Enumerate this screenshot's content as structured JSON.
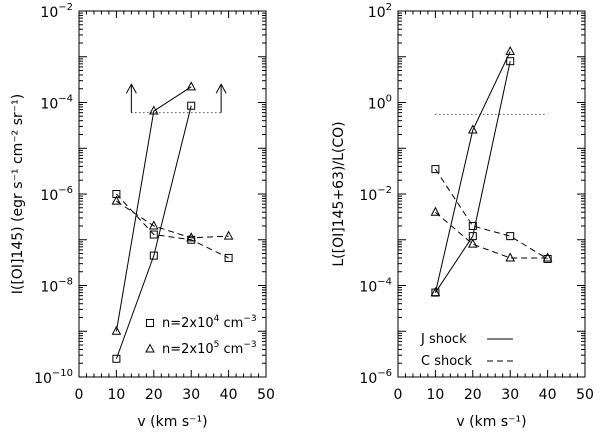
{
  "chart_data": [
    {
      "type": "scatter",
      "panel": "left",
      "title": "",
      "xlabel": "v (km s⁻¹)",
      "ylabel": "I([OI]145) (egr s⁻¹ cm⁻² sr⁻¹)",
      "y_scale": "log",
      "xlim": [
        0,
        50
      ],
      "ylim_exp": [
        -10,
        -2
      ],
      "x_ticks": [
        0,
        10,
        20,
        30,
        40,
        50
      ],
      "y_ticks_exp": [
        -10,
        -8,
        -6,
        -4,
        -2
      ],
      "series": [
        {
          "marker": "square",
          "linestyle": "solid",
          "x": [
            10,
            20,
            30
          ],
          "y": [
            2.5e-10,
            4.5e-08,
            8.5e-05
          ]
        },
        {
          "marker": "square",
          "linestyle": "dashed",
          "x": [
            10,
            20,
            30,
            40
          ],
          "y": [
            1e-06,
            1.3e-07,
            1e-07,
            4e-08
          ]
        },
        {
          "marker": "triangle",
          "linestyle": "solid",
          "x": [
            10,
            20,
            30
          ],
          "y": [
            1e-09,
            6.5e-05,
            0.00022
          ]
        },
        {
          "marker": "triangle",
          "linestyle": "dashed",
          "x": [
            10,
            20,
            30,
            40
          ],
          "y": [
            7e-07,
            2e-07,
            1.1e-07,
            1.2e-07
          ]
        }
      ],
      "limit_line": {
        "style": "dotted",
        "x": [
          14,
          38
        ],
        "y": 6e-05,
        "arrows_up_at_x": [
          14,
          38
        ],
        "arrow_top_y": 0.00025
      },
      "legend": [
        {
          "marker": "square",
          "label_base": "n=2x10",
          "label_exp": "4",
          "label_unit": "cm",
          "label_unit_exp": "−3"
        },
        {
          "marker": "triangle",
          "label_base": "n=2x10",
          "label_exp": "5",
          "label_unit": "cm",
          "label_unit_exp": "−3"
        }
      ]
    },
    {
      "type": "scatter",
      "panel": "right",
      "title": "",
      "xlabel": "v (km s⁻¹)",
      "ylabel": "L([OI]145+63)/L(CO)",
      "y_scale": "log",
      "xlim": [
        0,
        50
      ],
      "ylim_exp": [
        -6,
        2
      ],
      "x_ticks": [
        0,
        10,
        20,
        30,
        40,
        50
      ],
      "y_ticks_exp": [
        -6,
        -4,
        -2,
        0,
        2
      ],
      "series": [
        {
          "marker": "square",
          "linestyle": "solid",
          "x": [
            10,
            20,
            30
          ],
          "y": [
            7e-05,
            0.0012,
            8.0
          ]
        },
        {
          "marker": "square",
          "linestyle": "dashed",
          "x": [
            10,
            20,
            30,
            40
          ],
          "y": [
            0.035,
            0.002,
            0.0012,
            0.00038
          ]
        },
        {
          "marker": "triangle",
          "linestyle": "solid",
          "x": [
            10,
            20,
            30
          ],
          "y": [
            7e-05,
            0.25,
            13.0
          ]
        },
        {
          "marker": "triangle",
          "linestyle": "dashed",
          "x": [
            10,
            20,
            30,
            40
          ],
          "y": [
            0.004,
            0.0008,
            0.0004,
            0.0004
          ]
        }
      ],
      "limit_line": {
        "style": "dotted",
        "x": [
          10,
          40
        ],
        "y": 0.55
      },
      "legend": [
        {
          "label": "J shock",
          "linestyle": "solid"
        },
        {
          "label": "C shock",
          "linestyle": "dashed"
        }
      ]
    }
  ]
}
